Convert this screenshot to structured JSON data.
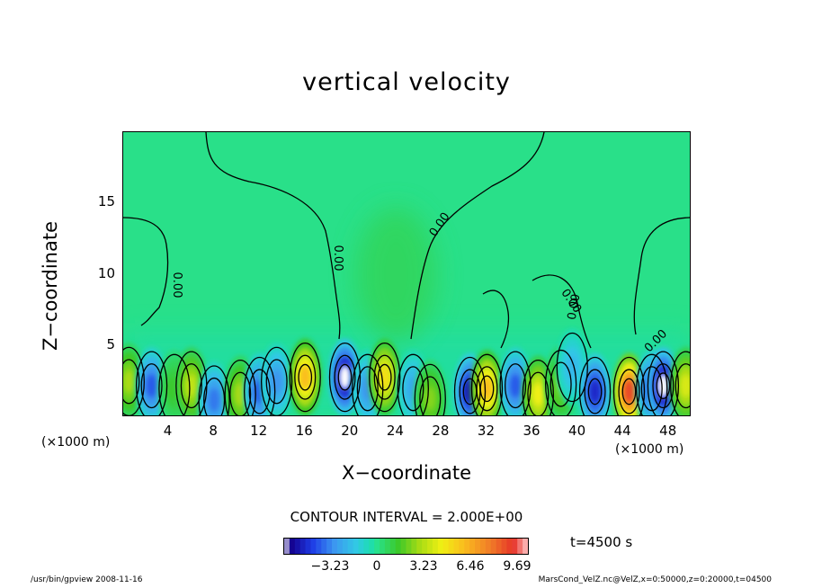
{
  "chart_data": {
    "type": "heatmap",
    "title": "vertical velocity",
    "xlabel": "X−coordinate",
    "ylabel": "Z−coordinate",
    "x_unit_left": "(×1000 m)",
    "x_unit_right": "(×1000 m)",
    "xlim": [
      0,
      50
    ],
    "ylim": [
      0,
      20
    ],
    "x_ticks": [
      "4",
      "8",
      "12",
      "16",
      "20",
      "24",
      "28",
      "32",
      "36",
      "40",
      "44",
      "48"
    ],
    "y_ticks": [
      "5",
      "10",
      "15"
    ],
    "contour_labels": [
      "0.00",
      "0.00",
      "0.00",
      "0.00",
      "0.00",
      "0.00"
    ],
    "contour_interval": "CONTOUR INTERVAL = 2.000E+00",
    "colorbar_ticks": [
      "−3.23",
      "0",
      "3.23",
      "6.46",
      "9.69"
    ],
    "colorbar_range": [
      -6.46,
      10.5
    ],
    "time_label": "t=4500 s",
    "cells": [
      {
        "x": 0.5,
        "z": 2.5,
        "w": 3.0
      },
      {
        "x": 2.5,
        "z": 2.2,
        "w": -4.0
      },
      {
        "x": 4.5,
        "z": 2.0,
        "w": 1.5
      },
      {
        "x": 6.0,
        "z": 2.2,
        "w": 3.5
      },
      {
        "x": 8.0,
        "z": 1.2,
        "w": -3.5
      },
      {
        "x": 10.3,
        "z": 1.6,
        "w": 3.0
      },
      {
        "x": 12.0,
        "z": 1.8,
        "w": -4.0
      },
      {
        "x": 13.5,
        "z": 2.5,
        "w": -3.0
      },
      {
        "x": 16.0,
        "z": 2.8,
        "w": 6.0
      },
      {
        "x": 19.5,
        "z": 2.8,
        "w": -6.5
      },
      {
        "x": 21.5,
        "z": 2.0,
        "w": -3.0
      },
      {
        "x": 23.0,
        "z": 2.8,
        "w": 5.0
      },
      {
        "x": 25.5,
        "z": 2.0,
        "w": -2.5
      },
      {
        "x": 27.0,
        "z": 1.3,
        "w": 2.5
      },
      {
        "x": 30.5,
        "z": 1.8,
        "w": -5.5
      },
      {
        "x": 32.0,
        "z": 2.0,
        "w": 6.0
      },
      {
        "x": 34.5,
        "z": 2.2,
        "w": -4.0
      },
      {
        "x": 36.5,
        "z": 1.6,
        "w": 4.5
      },
      {
        "x": 38.5,
        "z": 2.3,
        "w": 2.5
      },
      {
        "x": 39.5,
        "z": 3.5,
        "w": -2.0
      },
      {
        "x": 41.5,
        "z": 1.8,
        "w": -5.0
      },
      {
        "x": 44.5,
        "z": 1.8,
        "w": 9.0
      },
      {
        "x": 46.5,
        "z": 2.0,
        "w": -4.5
      },
      {
        "x": 47.5,
        "z": 2.2,
        "w": -6.5
      },
      {
        "x": 49.5,
        "z": 2.2,
        "w": 4.0
      }
    ],
    "updraft_region": {
      "x": 24,
      "z": 10,
      "w": 0.8
    }
  },
  "footer": {
    "left": "/usr/bin/gpview   2008-11-16",
    "right": "MarsCond_VelZ.nc@VelZ,x=0:50000,z=0:20000,t=04500"
  }
}
